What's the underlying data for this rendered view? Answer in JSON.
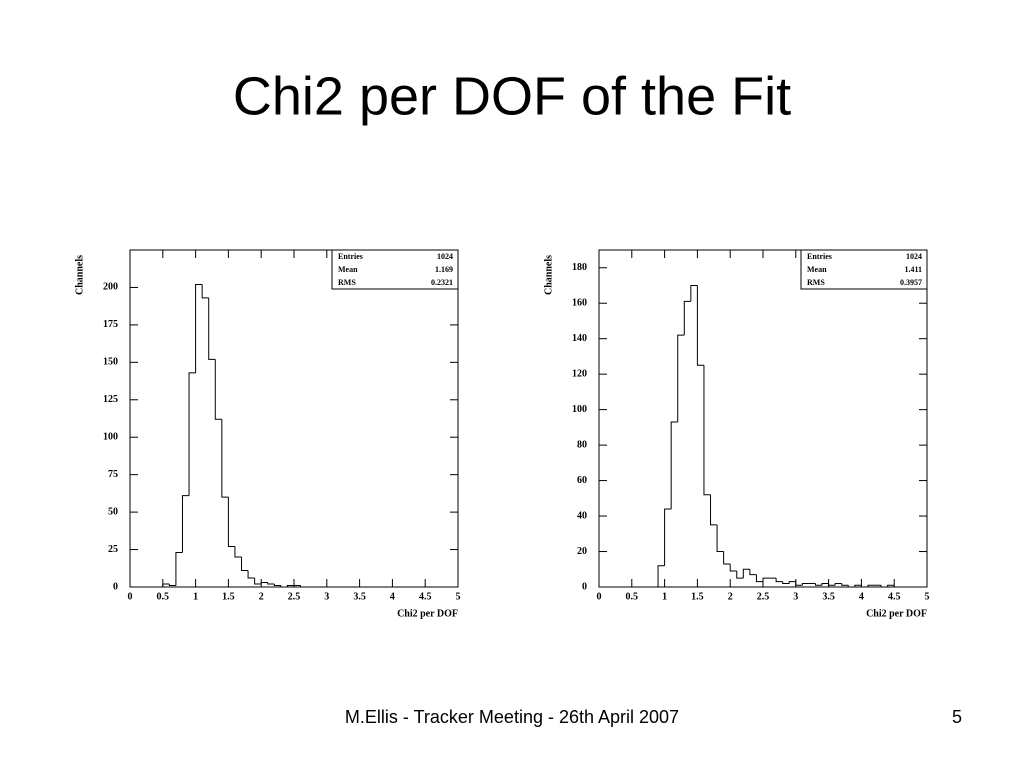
{
  "slide": {
    "title": "Chi2 per DOF of the Fit",
    "footer": "M.Ellis - Tracker Meeting - 26th April 2007",
    "page_number": "5"
  },
  "chart_data": [
    {
      "type": "histogram",
      "xlabel": "Chi2 per DOF",
      "ylabel": "Channels",
      "bins": [
        0,
        0.1,
        0.2,
        0.3,
        0.4,
        0.5,
        0.6,
        0.7,
        0.8,
        0.9,
        1,
        1.1,
        1.2,
        1.3,
        1.4,
        1.5,
        1.6,
        1.7,
        1.8,
        1.9,
        2,
        2.1,
        2.2,
        2.3,
        2.4,
        2.5,
        2.6,
        2.7,
        2.8,
        2.9,
        3,
        3.1,
        3.2,
        3.3,
        3.4,
        3.5,
        3.6,
        3.7,
        3.8,
        3.9,
        4,
        4.1,
        4.2,
        4.3,
        4.4,
        4.5,
        4.6,
        4.7,
        4.8,
        4.9,
        5
      ],
      "values": [
        0,
        0,
        0,
        0,
        0,
        2,
        1,
        23,
        61,
        143,
        202,
        193,
        152,
        112,
        60,
        27,
        20,
        11,
        6,
        2,
        3,
        2,
        1,
        0,
        1,
        1,
        0,
        0,
        0,
        0,
        0,
        0,
        0,
        0,
        0,
        0,
        0,
        0,
        0,
        0,
        0,
        0,
        0,
        0,
        0,
        0,
        0,
        0,
        0,
        0
      ],
      "xlim": [
        0,
        5
      ],
      "xticks": [
        0,
        0.5,
        1,
        1.5,
        2,
        2.5,
        3,
        3.5,
        4,
        4.5,
        5
      ],
      "ylim": [
        0,
        225
      ],
      "yticks": [
        0,
        25,
        50,
        75,
        100,
        125,
        150,
        175,
        200
      ],
      "color": "#000000",
      "stats": [
        {
          "label": "Entries",
          "value": 1024
        },
        {
          "label": "Mean",
          "value": 1.169
        },
        {
          "label": "RMS",
          "value": 0.2321
        }
      ]
    },
    {
      "type": "histogram",
      "xlabel": "Chi2 per DOF",
      "ylabel": "Channels",
      "bins": [
        0,
        0.1,
        0.2,
        0.3,
        0.4,
        0.5,
        0.6,
        0.7,
        0.8,
        0.9,
        1,
        1.1,
        1.2,
        1.3,
        1.4,
        1.5,
        1.6,
        1.7,
        1.8,
        1.9,
        2,
        2.1,
        2.2,
        2.3,
        2.4,
        2.5,
        2.6,
        2.7,
        2.8,
        2.9,
        3,
        3.1,
        3.2,
        3.3,
        3.4,
        3.5,
        3.6,
        3.7,
        3.8,
        3.9,
        4,
        4.1,
        4.2,
        4.3,
        4.4,
        4.5,
        4.6,
        4.7,
        4.8,
        4.9,
        5
      ],
      "values": [
        0,
        0,
        0,
        0,
        0,
        0,
        0,
        0,
        0,
        12,
        44,
        93,
        142,
        161,
        170,
        125,
        52,
        35,
        20,
        13,
        9,
        5,
        10,
        7,
        3,
        5,
        5,
        3,
        2,
        3,
        1,
        2,
        2,
        1,
        2,
        1,
        2,
        1,
        0,
        1,
        0,
        1,
        1,
        0,
        1,
        0,
        0,
        0,
        0,
        0
      ],
      "xlim": [
        0,
        5
      ],
      "xticks": [
        0,
        0.5,
        1,
        1.5,
        2,
        2.5,
        3,
        3.5,
        4,
        4.5,
        5
      ],
      "ylim": [
        0,
        190
      ],
      "yticks": [
        0,
        20,
        40,
        60,
        80,
        100,
        120,
        140,
        160,
        180
      ],
      "color": "#000000",
      "stats": [
        {
          "label": "Entries",
          "value": 1024
        },
        {
          "label": "Mean",
          "value": 1.411
        },
        {
          "label": "RMS",
          "value": 0.3957
        }
      ]
    }
  ]
}
